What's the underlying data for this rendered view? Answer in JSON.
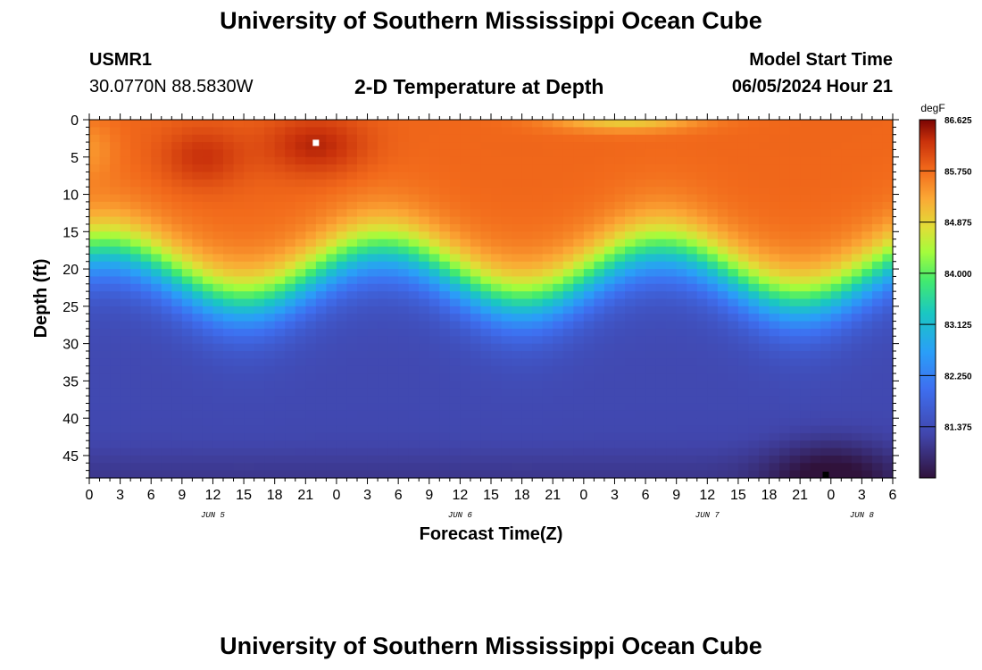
{
  "header": {
    "title": "University of Southern Mississippi Ocean Cube",
    "station_id": "USMR1",
    "coordinates": "30.0770N  88.5830W",
    "subtitle": "2-D Temperature at Depth",
    "model_start_label": "Model Start Time",
    "model_start_value": "06/05/2024 Hour 21"
  },
  "footer": {
    "title": "University of Southern Mississippi Ocean Cube"
  },
  "chart_data": {
    "type": "heatmap",
    "title": "2-D Temperature at Depth",
    "xlabel": "Forecast Time(Z)",
    "ylabel": "Depth (ft)",
    "x_ticks": [
      "0",
      "3",
      "6",
      "9",
      "12",
      "15",
      "18",
      "21",
      "0",
      "3",
      "6",
      "9",
      "12",
      "15",
      "18",
      "21",
      "0",
      "3",
      "6",
      "9",
      "12",
      "15",
      "18",
      "21",
      "0",
      "3",
      "6"
    ],
    "x_range_hours": [
      0,
      78
    ],
    "date_labels": [
      {
        "label": "JUN 5",
        "hour": 12
      },
      {
        "label": "JUN 6",
        "hour": 36
      },
      {
        "label": "JUN 7",
        "hour": 60
      },
      {
        "label": "JUN 8",
        "hour": 75
      }
    ],
    "y_ticks": [
      0,
      5,
      10,
      15,
      20,
      25,
      30,
      35,
      40,
      45
    ],
    "y_range_ft": [
      0,
      48
    ],
    "colorbar": {
      "unit": "degF",
      "min": 80.5,
      "max": 86.625,
      "ticks": [
        "86.625",
        "85.750",
        "84.875",
        "84.000",
        "83.125",
        "82.250",
        "81.375"
      ]
    },
    "field_summary": {
      "surface_layer_degF": 85.8,
      "thermocline_depth_ft": [
        17,
        26
      ],
      "bottom_layer_degF": 81.3,
      "max_degF": 86.6,
      "min_degF": 80.6
    },
    "markers": [
      {
        "name": "max-marker",
        "hour": 22,
        "depth_ft": 3.1,
        "color": "#ffffff"
      },
      {
        "name": "min-marker",
        "hour": 71.5,
        "depth_ft": 48,
        "color": "#000000"
      }
    ]
  }
}
